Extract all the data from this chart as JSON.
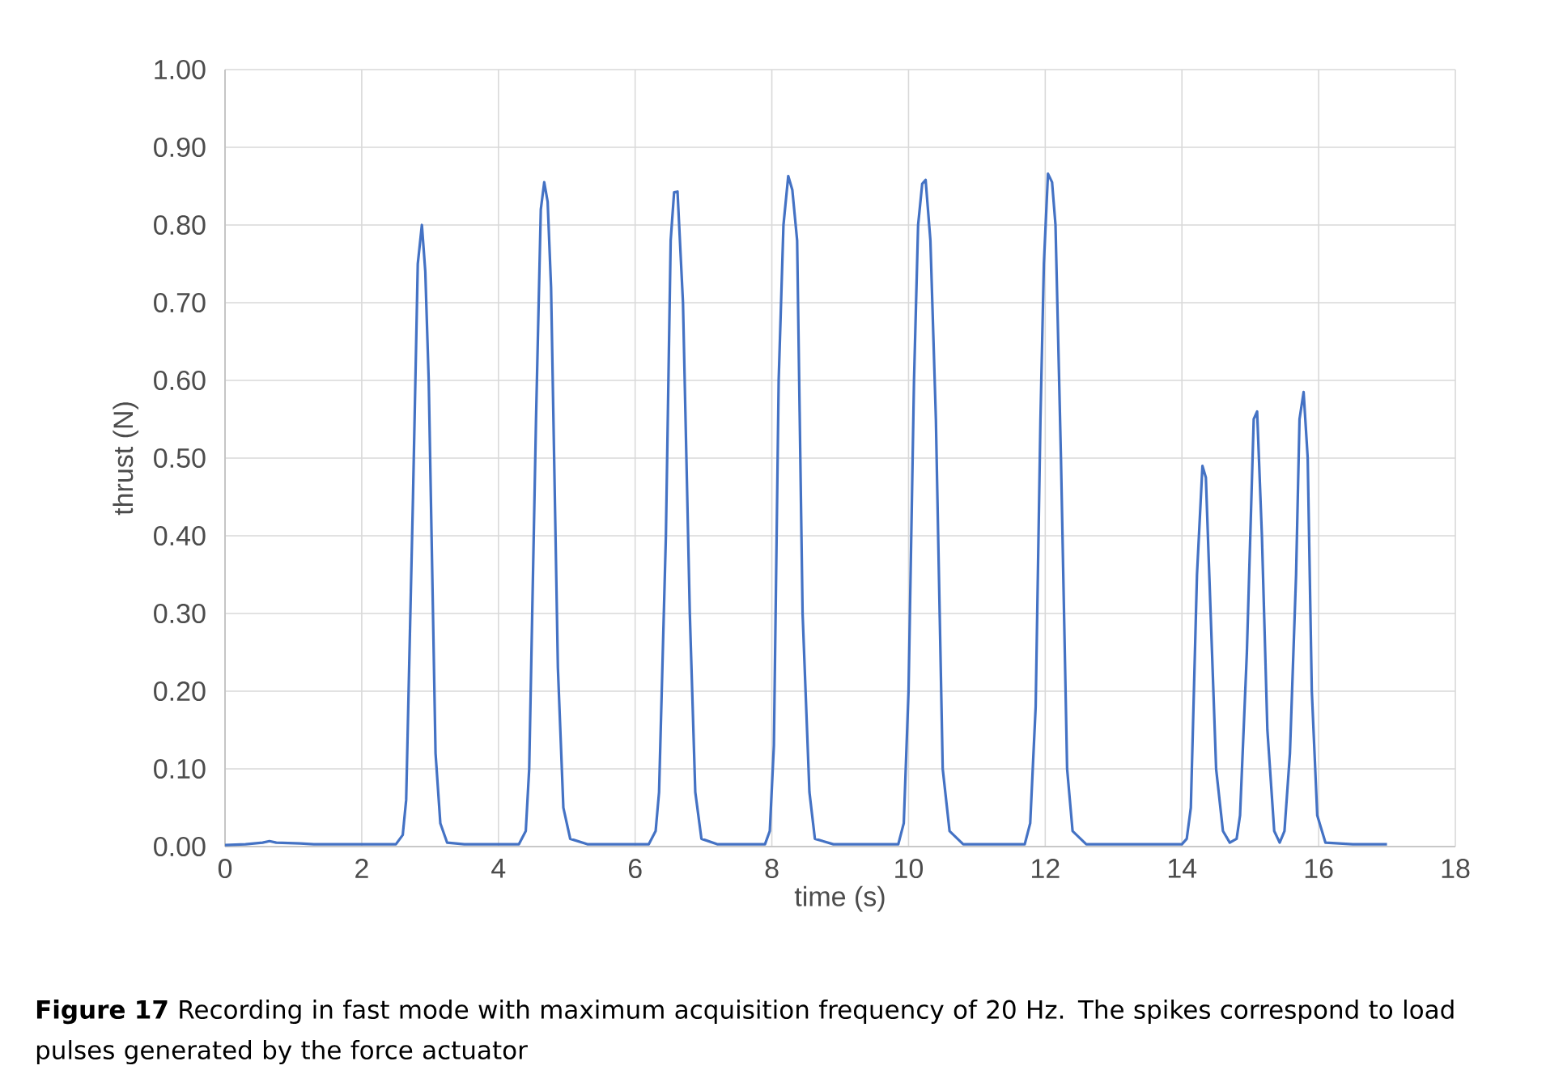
{
  "chart_data": {
    "type": "line",
    "xlabel": "time (s)",
    "ylabel": "thrust  (N)",
    "x": [
      0,
      0.3,
      0.55,
      0.65,
      0.75,
      1.1,
      1.3,
      2.5,
      2.6,
      2.65,
      2.75,
      2.82,
      2.88,
      2.93,
      2.98,
      3.08,
      3.15,
      3.25,
      3.5,
      4.3,
      4.4,
      4.45,
      4.55,
      4.62,
      4.67,
      4.72,
      4.77,
      4.87,
      4.95,
      5.05,
      5.3,
      6.2,
      6.3,
      6.35,
      6.45,
      6.52,
      6.57,
      6.62,
      6.7,
      6.8,
      6.88,
      6.97,
      7.2,
      7.9,
      7.97,
      8.03,
      8.1,
      8.17,
      8.24,
      8.3,
      8.37,
      8.45,
      8.55,
      8.63,
      8.9,
      9.85,
      9.93,
      10.0,
      10.08,
      10.14,
      10.2,
      10.25,
      10.32,
      10.4,
      10.5,
      10.6,
      10.8,
      11.7,
      11.78,
      11.86,
      11.93,
      11.98,
      12.04,
      12.1,
      12.15,
      12.23,
      12.32,
      12.4,
      12.6,
      14.0,
      14.07,
      14.13,
      14.22,
      14.3,
      14.35,
      14.42,
      14.5,
      14.6,
      14.7,
      14.8,
      14.85,
      14.95,
      15.05,
      15.1,
      15.17,
      15.25,
      15.35,
      15.43,
      15.5,
      15.58,
      15.67,
      15.72,
      15.78,
      15.84,
      15.9,
      15.98,
      16.1,
      16.5,
      17.0
    ],
    "series": [
      {
        "color": "#4472c4",
        "values": [
          0.002,
          0.003,
          0.005,
          0.007,
          0.005,
          0.004,
          0.003,
          0.003,
          0.015,
          0.06,
          0.45,
          0.75,
          0.8,
          0.74,
          0.6,
          0.12,
          0.03,
          0.005,
          0.003,
          0.003,
          0.02,
          0.1,
          0.55,
          0.82,
          0.855,
          0.83,
          0.72,
          0.23,
          0.05,
          0.01,
          0.003,
          0.003,
          0.02,
          0.07,
          0.4,
          0.78,
          0.842,
          0.843,
          0.7,
          0.3,
          0.07,
          0.01,
          0.003,
          0.003,
          0.02,
          0.13,
          0.6,
          0.8,
          0.863,
          0.845,
          0.78,
          0.3,
          0.07,
          0.01,
          0.003,
          0.003,
          0.03,
          0.2,
          0.6,
          0.8,
          0.853,
          0.858,
          0.78,
          0.55,
          0.1,
          0.02,
          0.003,
          0.003,
          0.03,
          0.18,
          0.55,
          0.75,
          0.866,
          0.855,
          0.8,
          0.5,
          0.1,
          0.02,
          0.003,
          0.003,
          0.01,
          0.05,
          0.35,
          0.49,
          0.475,
          0.3,
          0.1,
          0.02,
          0.005,
          0.01,
          0.04,
          0.25,
          0.55,
          0.56,
          0.4,
          0.15,
          0.02,
          0.005,
          0.02,
          0.12,
          0.35,
          0.55,
          0.585,
          0.5,
          0.2,
          0.04,
          0.005,
          0.003,
          0.003
        ]
      }
    ],
    "xlim": [
      0,
      18
    ],
    "xticks": [
      0,
      2,
      4,
      6,
      8,
      10,
      12,
      14,
      16,
      18
    ],
    "ylim": [
      0,
      1
    ],
    "yticks": [
      {
        "value": 0,
        "label": "0.00"
      },
      {
        "value": 0.1,
        "label": "0.10"
      },
      {
        "value": 0.2,
        "label": "0.20"
      },
      {
        "value": 0.3,
        "label": "0.30"
      },
      {
        "value": 0.4,
        "label": "0.40"
      },
      {
        "value": 0.5,
        "label": "0.50"
      },
      {
        "value": 0.6,
        "label": "0.60"
      },
      {
        "value": 0.7,
        "label": "0.70"
      },
      {
        "value": 0.8,
        "label": "0.80"
      },
      {
        "value": 0.9,
        "label": "0.90"
      },
      {
        "value": 1,
        "label": "1.00"
      }
    ],
    "grid": true,
    "marker": "none",
    "line_style": "solid",
    "annotations": [
      "**Figure 17**  Recording in fast mode with maximum acquisition frequency of 20 Hz. The spikes correspond to load pulses generated by the force actuator"
    ]
  }
}
